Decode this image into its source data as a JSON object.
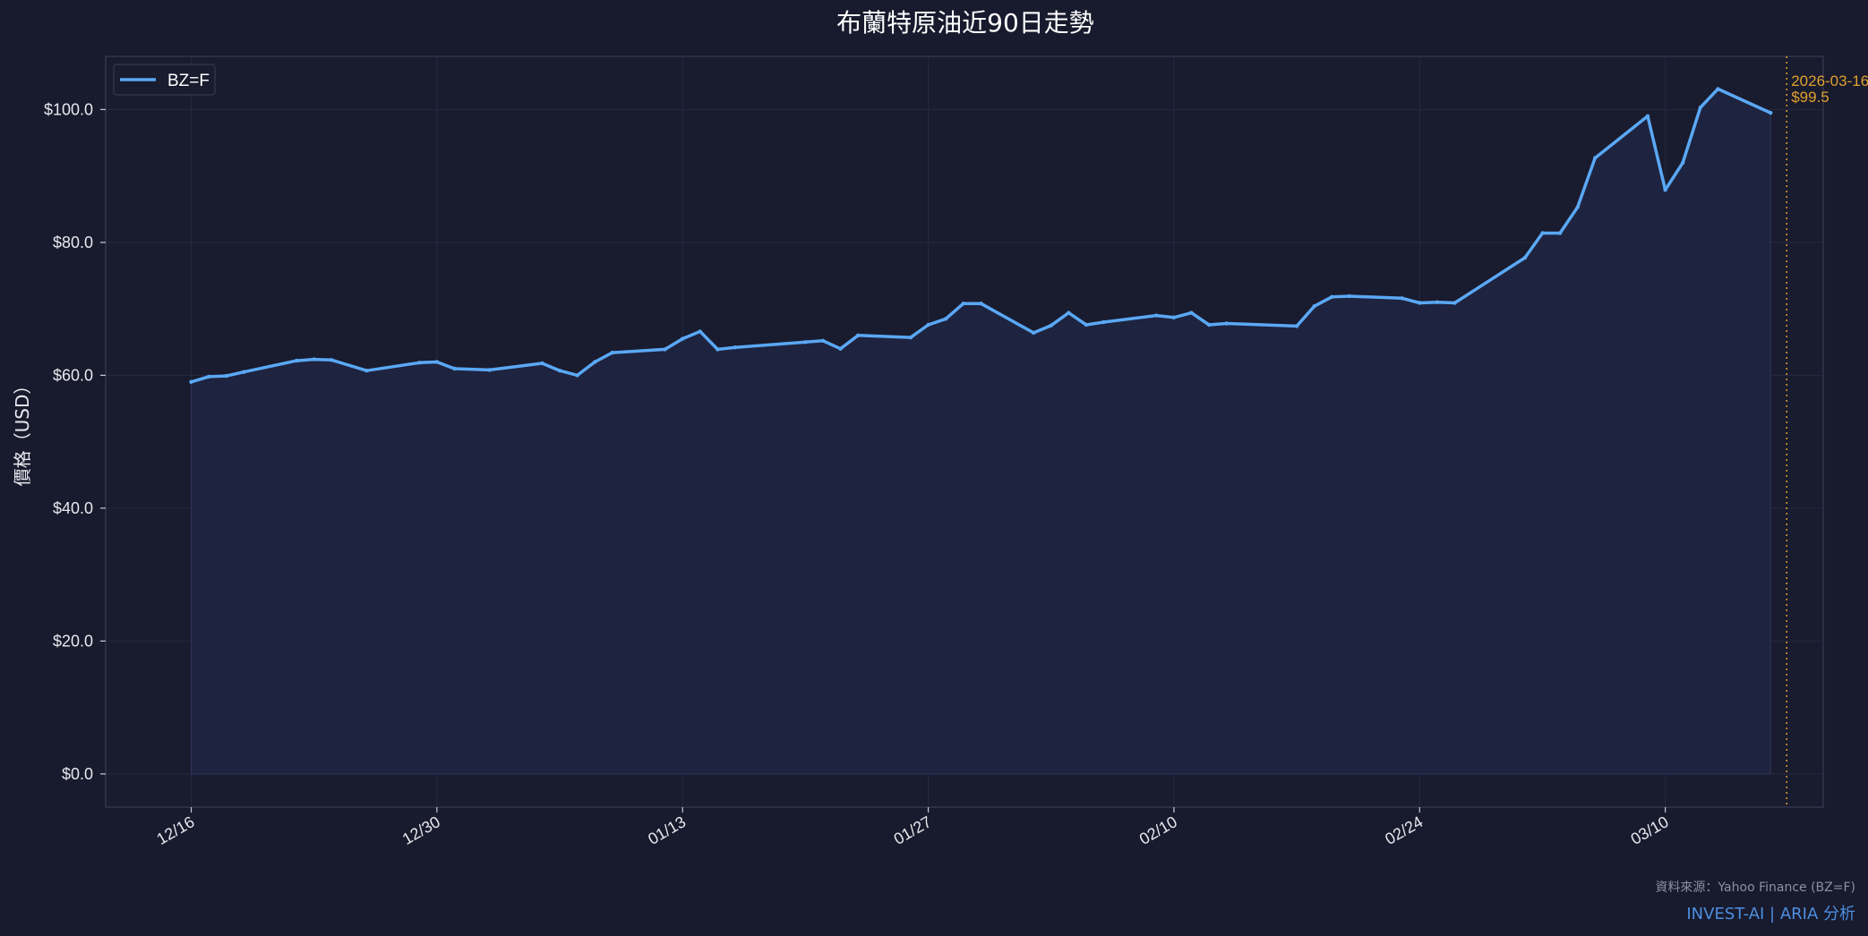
{
  "chart_data": {
    "type": "area",
    "title": "布蘭特原油近90日走勢",
    "ylabel": "價格（USD）",
    "xlabel": "",
    "ylim": [
      -5,
      108
    ],
    "yticks": [
      0,
      20,
      40,
      60,
      80,
      100
    ],
    "ytick_labels": [
      "$0.0",
      "$20.0",
      "$40.0",
      "$60.0",
      "$80.0",
      "$100.0"
    ],
    "xticks": [
      "2025-12-16",
      "2025-12-30",
      "2026-01-13",
      "2026-01-27",
      "2026-02-10",
      "2026-02-24",
      "2026-03-10"
    ],
    "xtick_labels": [
      "12/16",
      "12/30",
      "01/13",
      "01/27",
      "02/10",
      "02/24",
      "03/10"
    ],
    "xlim": [
      "2025-12-11 15:00",
      "2026-03-19 12:00"
    ],
    "grid": true,
    "legend": {
      "position": "top-left",
      "entries": [
        "BZ=F"
      ]
    },
    "series": [
      {
        "name": "BZ=F",
        "color": "#5aa8f5",
        "x": [
          "2025-12-16",
          "2025-12-17",
          "2025-12-18",
          "2025-12-19",
          "2025-12-22",
          "2025-12-23",
          "2025-12-24",
          "2025-12-26",
          "2025-12-29",
          "2025-12-30",
          "2025-12-31",
          "2026-01-02",
          "2026-01-05",
          "2026-01-06",
          "2026-01-07",
          "2026-01-08",
          "2026-01-09",
          "2026-01-12",
          "2026-01-13",
          "2026-01-14",
          "2026-01-15",
          "2026-01-16",
          "2026-01-20",
          "2026-01-21",
          "2026-01-22",
          "2026-01-23",
          "2026-01-26",
          "2026-01-27",
          "2026-01-28",
          "2026-01-29",
          "2026-01-30",
          "2026-02-02",
          "2026-02-03",
          "2026-02-04",
          "2026-02-05",
          "2026-02-06",
          "2026-02-09",
          "2026-02-10",
          "2026-02-11",
          "2026-02-12",
          "2026-02-13",
          "2026-02-17",
          "2026-02-18",
          "2026-02-19",
          "2026-02-20",
          "2026-02-23",
          "2026-02-24",
          "2026-02-25",
          "2026-02-26",
          "2026-03-02",
          "2026-03-03",
          "2026-03-04",
          "2026-03-05",
          "2026-03-06",
          "2026-03-09",
          "2026-03-10",
          "2026-03-11",
          "2026-03-12",
          "2026-03-13",
          "2026-03-16"
        ],
        "values": [
          59.0,
          59.8,
          59.9,
          60.5,
          62.2,
          62.4,
          62.3,
          60.7,
          61.9,
          62.0,
          61.0,
          60.8,
          61.8,
          60.7,
          60.0,
          62.0,
          63.4,
          63.9,
          65.5,
          66.6,
          63.9,
          64.2,
          65.0,
          65.2,
          64.0,
          66.0,
          65.7,
          67.6,
          68.5,
          70.8,
          70.8,
          66.4,
          67.5,
          69.4,
          67.6,
          68.0,
          69.0,
          68.7,
          69.4,
          67.6,
          67.8,
          67.4,
          70.4,
          71.8,
          71.9,
          71.6,
          70.9,
          71.0,
          70.9,
          77.7,
          81.4,
          81.4,
          85.3,
          92.7,
          99.0,
          87.9,
          92.0,
          100.3,
          103.1,
          99.5
        ]
      }
    ],
    "annotation": {
      "date": "2026-03-16",
      "label_date": "2026-03-16",
      "label_value": "$99.5",
      "color": "#e0a02e"
    },
    "footer": {
      "source": "資料來源：Yahoo Finance (BZ=F)",
      "brand": "INVEST-AI | ARIA 分析"
    }
  }
}
